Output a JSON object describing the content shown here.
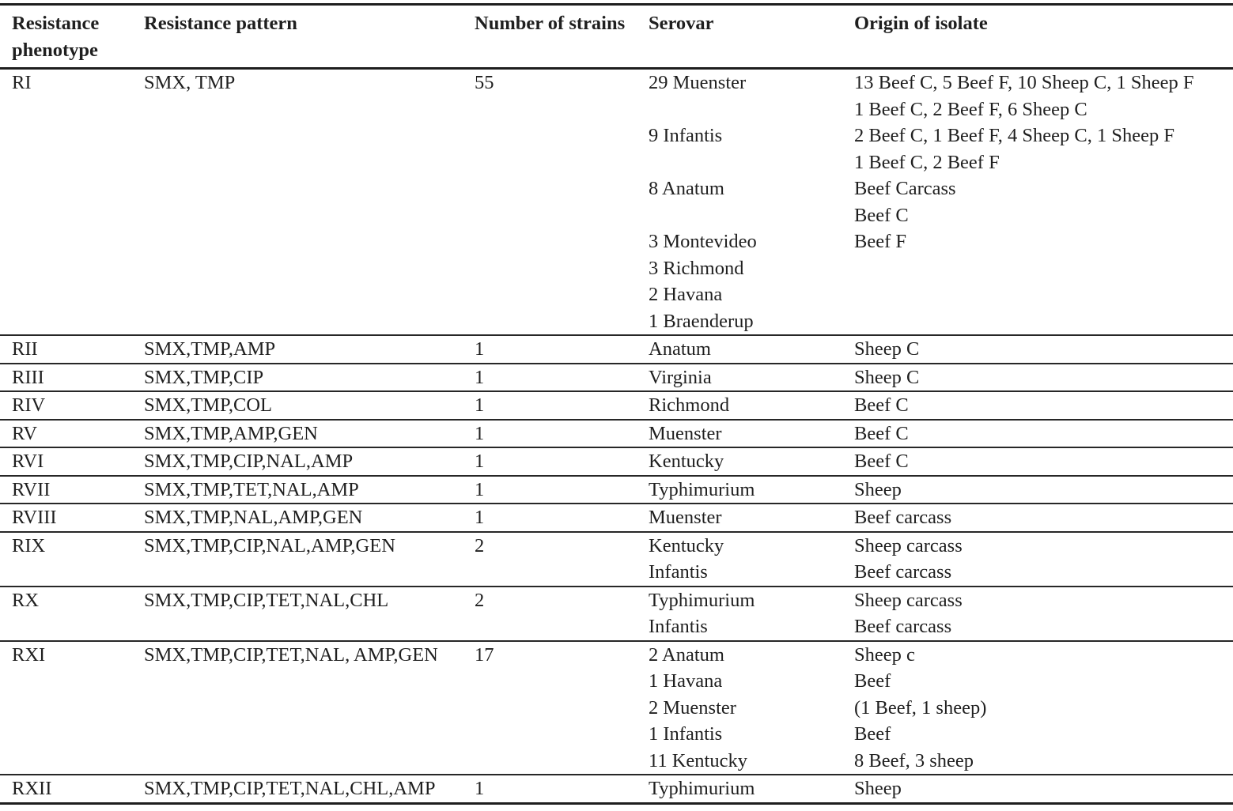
{
  "table": {
    "headers": [
      "Resistance phenotype",
      "Resistance pattern",
      "Number of strains",
      "Serovar",
      "Origin of isolate"
    ],
    "rows": [
      {
        "phenotype": "RI",
        "pattern": "SMX, TMP",
        "strains": "55",
        "serovar_lines": [
          "29 Muenster",
          "",
          "9 Infantis",
          "",
          "8 Anatum",
          "",
          "3 Montevideo",
          "3 Richmond",
          "2 Havana",
          "1 Braenderup"
        ],
        "origin_lines": [
          "13 Beef C, 5 Beef F, 10 Sheep C, 1 Sheep F",
          "1 Beef C, 2 Beef F, 6 Sheep C",
          "2 Beef C, 1 Beef F, 4 Sheep C, 1 Sheep F",
          "1 Beef C, 2 Beef F",
          "Beef Carcass",
          "Beef C",
          "Beef F",
          "",
          "",
          ""
        ]
      },
      {
        "phenotype": "RII",
        "pattern": "SMX,TMP,AMP",
        "strains": "1",
        "serovar_lines": [
          "Anatum"
        ],
        "origin_lines": [
          "Sheep C"
        ]
      },
      {
        "phenotype": "RIII",
        "pattern": "SMX,TMP,CIP",
        "strains": "1",
        "serovar_lines": [
          "Virginia"
        ],
        "origin_lines": [
          "Sheep C"
        ]
      },
      {
        "phenotype": "RIV",
        "pattern": "SMX,TMP,COL",
        "strains": "1",
        "serovar_lines": [
          "Richmond"
        ],
        "origin_lines": [
          "Beef C"
        ]
      },
      {
        "phenotype": "RV",
        "pattern": "SMX,TMP,AMP,GEN",
        "strains": "1",
        "serovar_lines": [
          "Muenster"
        ],
        "origin_lines": [
          "Beef C"
        ]
      },
      {
        "phenotype": "RVI",
        "pattern": "SMX,TMP,CIP,NAL,AMP",
        "strains": "1",
        "serovar_lines": [
          "Kentucky"
        ],
        "origin_lines": [
          "Beef C"
        ]
      },
      {
        "phenotype": "RVII",
        "pattern": "SMX,TMP,TET,NAL,AMP",
        "strains": "1",
        "serovar_lines": [
          "Typhimurium"
        ],
        "origin_lines": [
          "Sheep"
        ]
      },
      {
        "phenotype": "RVIII",
        "pattern": "SMX,TMP,NAL,AMP,GEN",
        "strains": "1",
        "serovar_lines": [
          "Muenster"
        ],
        "origin_lines": [
          "Beef carcass"
        ]
      },
      {
        "phenotype": "RIX",
        "pattern": "SMX,TMP,CIP,NAL,AMP,GEN",
        "strains": "2",
        "serovar_lines": [
          "Kentucky",
          "Infantis"
        ],
        "origin_lines": [
          "Sheep carcass",
          "Beef carcass"
        ]
      },
      {
        "phenotype": "RX",
        "pattern": "SMX,TMP,CIP,TET,NAL,CHL",
        "strains": "2",
        "serovar_lines": [
          "Typhimurium",
          "Infantis"
        ],
        "origin_lines": [
          "Sheep carcass",
          "Beef carcass"
        ]
      },
      {
        "phenotype": "RXI",
        "pattern": "SMX,TMP,CIP,TET,NAL, AMP,GEN",
        "strains": "17",
        "serovar_lines": [
          "2 Anatum",
          "1 Havana",
          "2 Muenster",
          "1 Infantis",
          "11 Kentucky"
        ],
        "origin_lines": [
          "Sheep c",
          "Beef",
          "(1 Beef, 1 sheep)",
          "Beef",
          "8 Beef, 3 sheep"
        ]
      },
      {
        "phenotype": "RXII",
        "pattern": "SMX,TMP,CIP,TET,NAL,CHL,AMP",
        "strains": "1",
        "serovar_lines": [
          "Typhimurium"
        ],
        "origin_lines": [
          "Sheep"
        ]
      }
    ]
  }
}
